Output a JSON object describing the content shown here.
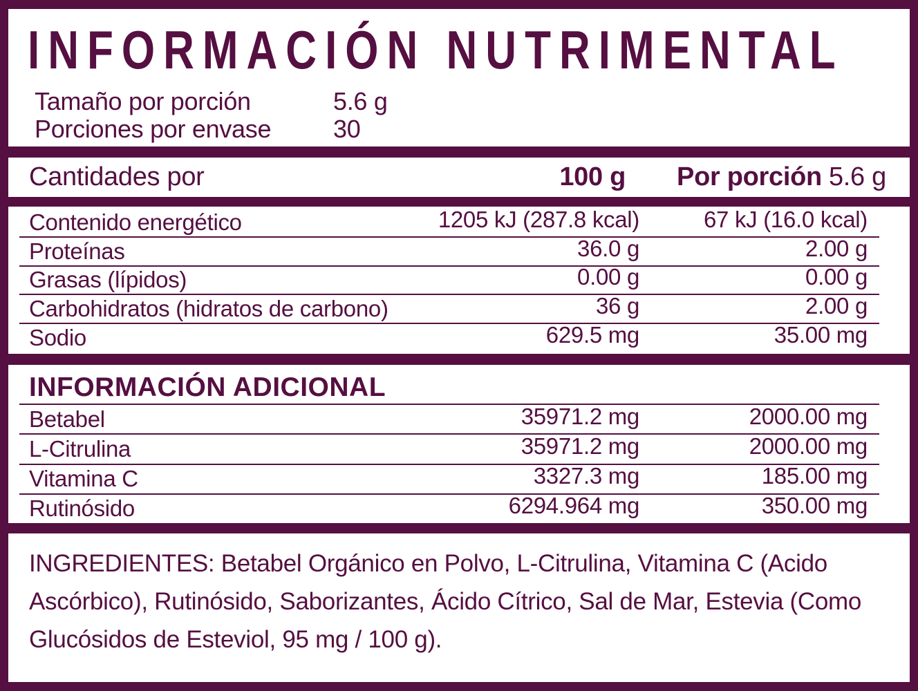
{
  "colors": {
    "brand": "#550f41",
    "surface": "#ffffff"
  },
  "title": "INFORMACIÓN NUTRIMENTAL",
  "serving_info": {
    "serving_size_label": "Tamaño por porción",
    "serving_size_value": "5.6 g",
    "servings_per_container_label": "Porciones por envase",
    "servings_per_container_value": "30"
  },
  "amounts_header": {
    "label": "Cantidades por",
    "per_100g": "100 g",
    "per_portion_label": "Por porción",
    "per_portion_value": "5.6 g"
  },
  "nutrition": {
    "rows": [
      {
        "label": "Contenido energético",
        "per_100g": "1205 kJ (287.8 kcal)",
        "per_portion": "67 kJ (16.0 kcal)"
      },
      {
        "label": "Proteínas",
        "per_100g": "36.0 g",
        "per_portion": "2.00 g"
      },
      {
        "label": "Grasas (lípidos)",
        "per_100g": "0.00 g",
        "per_portion": "0.00 g"
      },
      {
        "label": "Carbohidratos (hidratos de carbono)",
        "per_100g": "36 g",
        "per_portion": "2.00 g"
      },
      {
        "label": "Sodio",
        "per_100g": "629.5 mg",
        "per_portion": "35.00 mg"
      }
    ]
  },
  "additional": {
    "title": "INFORMACIÓN ADICIONAL",
    "rows": [
      {
        "label": "Betabel",
        "per_100g": "35971.2 mg",
        "per_portion": "2000.00 mg"
      },
      {
        "label": "L-Citrulina",
        "per_100g": "35971.2 mg",
        "per_portion": "2000.00 mg"
      },
      {
        "label": "Vitamina C",
        "per_100g": "3327.3 mg",
        "per_portion": "185.00 mg"
      },
      {
        "label": "Rutinósido",
        "per_100g": "6294.964 mg",
        "per_portion": "350.00 mg"
      }
    ]
  },
  "ingredients": "INGREDIENTES: Betabel Orgánico en Polvo, L-Citrulina, Vitamina C (Acido Ascórbico), Rutinósido, Saborizantes, Ácido Cítrico, Sal de Mar, Estevia (Como Glucósidos de Esteviol, 95 mg / 100 g)."
}
